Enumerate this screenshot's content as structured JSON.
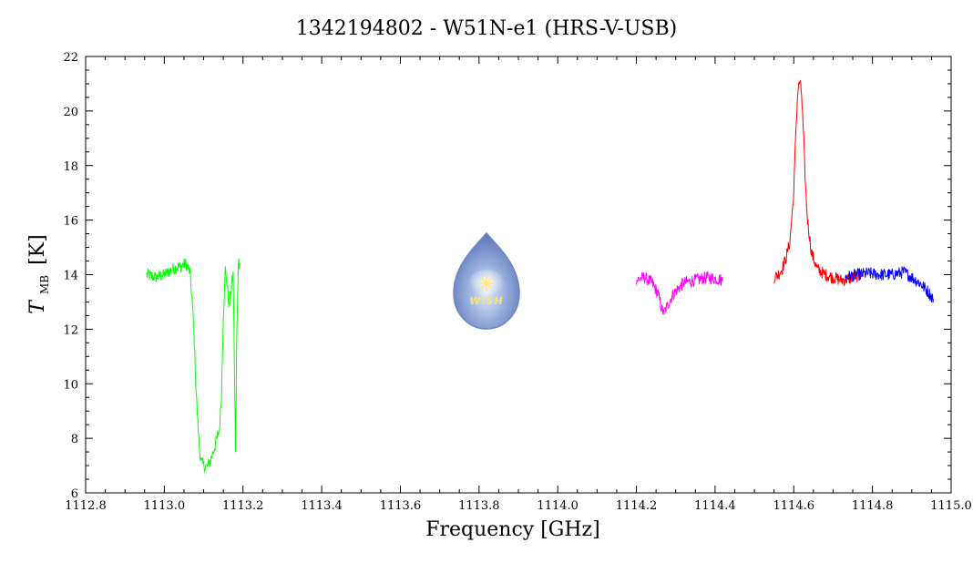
{
  "chart_data": {
    "type": "line",
    "title": "1342194802 - W51N-e1 (HRS-V-USB)",
    "xlabel": "Frequency [GHz]",
    "ylabel_main": "T",
    "ylabel_sub": "MB",
    "ylabel_unit": "[K]",
    "xlim": [
      1112.8,
      1115.0
    ],
    "ylim": [
      6,
      22
    ],
    "x_ticks": [
      "1112.8",
      "1113.0",
      "1113.2",
      "1113.4",
      "1113.6",
      "1113.8",
      "1114.0",
      "1114.2",
      "1114.4",
      "1114.6",
      "1114.8",
      "1115.0"
    ],
    "y_ticks": [
      "6",
      "8",
      "10",
      "12",
      "14",
      "16",
      "18",
      "20",
      "22"
    ],
    "grid": false,
    "series": [
      {
        "color": "#00ff00",
        "points": [
          [
            1112.955,
            14.0
          ],
          [
            1112.98,
            13.9
          ],
          [
            1113.0,
            14.0
          ],
          [
            1113.02,
            14.2
          ],
          [
            1113.04,
            14.3
          ],
          [
            1113.055,
            14.4
          ],
          [
            1113.065,
            14.1
          ],
          [
            1113.07,
            13.2
          ],
          [
            1113.075,
            12.0
          ],
          [
            1113.08,
            10.0
          ],
          [
            1113.085,
            8.6
          ],
          [
            1113.09,
            7.5
          ],
          [
            1113.095,
            7.1
          ],
          [
            1113.1,
            7.0
          ],
          [
            1113.11,
            6.95
          ],
          [
            1113.12,
            7.3
          ],
          [
            1113.13,
            7.8
          ],
          [
            1113.14,
            8.3
          ],
          [
            1113.145,
            9.5
          ],
          [
            1113.15,
            12.5
          ],
          [
            1113.155,
            14.2
          ],
          [
            1113.16,
            13.6
          ],
          [
            1113.165,
            12.8
          ],
          [
            1113.17,
            13.5
          ],
          [
            1113.175,
            14.0
          ],
          [
            1113.178,
            11.0
          ],
          [
            1113.181,
            7.4
          ],
          [
            1113.184,
            11.5
          ],
          [
            1113.188,
            14.5
          ],
          [
            1113.192,
            14.4
          ]
        ]
      },
      {
        "color": "#ff00ff",
        "points": [
          [
            1114.2,
            13.8
          ],
          [
            1114.22,
            13.9
          ],
          [
            1114.24,
            13.7
          ],
          [
            1114.255,
            13.3
          ],
          [
            1114.265,
            12.7
          ],
          [
            1114.27,
            12.6
          ],
          [
            1114.28,
            12.9
          ],
          [
            1114.29,
            13.2
          ],
          [
            1114.3,
            13.4
          ],
          [
            1114.32,
            13.7
          ],
          [
            1114.35,
            13.8
          ],
          [
            1114.38,
            13.9
          ],
          [
            1114.4,
            13.85
          ],
          [
            1114.42,
            13.8
          ]
        ]
      },
      {
        "color": "#ff0000",
        "points": [
          [
            1114.55,
            13.9
          ],
          [
            1114.56,
            14.0
          ],
          [
            1114.57,
            14.2
          ],
          [
            1114.58,
            14.6
          ],
          [
            1114.59,
            15.2
          ],
          [
            1114.6,
            17.0
          ],
          [
            1114.605,
            19.2
          ],
          [
            1114.61,
            20.7
          ],
          [
            1114.615,
            21.1
          ],
          [
            1114.62,
            20.6
          ],
          [
            1114.625,
            19.0
          ],
          [
            1114.63,
            17.2
          ],
          [
            1114.635,
            16.0
          ],
          [
            1114.645,
            14.8
          ],
          [
            1114.66,
            14.2
          ],
          [
            1114.68,
            14.0
          ],
          [
            1114.7,
            13.9
          ],
          [
            1114.72,
            13.8
          ],
          [
            1114.74,
            13.85
          ],
          [
            1114.76,
            13.95
          ],
          [
            1114.775,
            14.0
          ]
        ]
      },
      {
        "color": "#0000ff",
        "points": [
          [
            1114.73,
            13.9
          ],
          [
            1114.76,
            14.0
          ],
          [
            1114.79,
            14.05
          ],
          [
            1114.82,
            14.0
          ],
          [
            1114.85,
            14.0
          ],
          [
            1114.88,
            14.1
          ],
          [
            1114.9,
            13.9
          ],
          [
            1114.92,
            13.7
          ],
          [
            1114.94,
            13.4
          ],
          [
            1114.955,
            13.1
          ]
        ]
      }
    ]
  },
  "logo": {
    "text": "WISH"
  }
}
